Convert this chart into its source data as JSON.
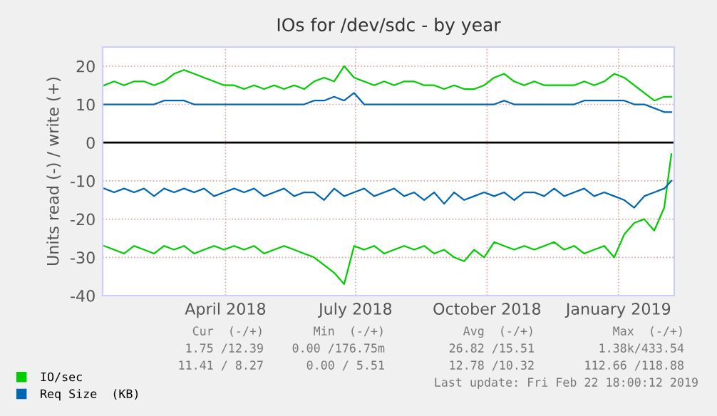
{
  "chart_data": {
    "type": "line",
    "title": "IOs for /dev/sdc - by year",
    "ylabel": "Units read (-) / write (+)",
    "x": [
      "2018-01-20",
      "2018-01-27",
      "2018-02-03",
      "2018-02-10",
      "2018-02-17",
      "2018-02-24",
      "2018-03-03",
      "2018-03-10",
      "2018-03-17",
      "2018-03-24",
      "2018-03-31",
      "2018-04-07",
      "2018-04-14",
      "2018-04-21",
      "2018-04-28",
      "2018-05-05",
      "2018-05-12",
      "2018-05-19",
      "2018-05-26",
      "2018-06-02",
      "2018-06-09",
      "2018-06-16",
      "2018-06-23",
      "2018-06-30",
      "2018-07-07",
      "2018-07-14",
      "2018-07-21",
      "2018-07-28",
      "2018-08-04",
      "2018-08-11",
      "2018-08-18",
      "2018-08-25",
      "2018-09-01",
      "2018-09-08",
      "2018-09-15",
      "2018-09-22",
      "2018-09-29",
      "2018-10-06",
      "2018-10-13",
      "2018-10-20",
      "2018-10-27",
      "2018-11-03",
      "2018-11-10",
      "2018-11-17",
      "2018-11-24",
      "2018-12-01",
      "2018-12-08",
      "2018-12-15",
      "2018-12-22",
      "2018-12-29",
      "2019-01-05",
      "2019-01-12",
      "2019-01-19",
      "2019-01-26",
      "2019-02-02",
      "2019-02-09",
      "2019-02-16",
      "2019-02-21"
    ],
    "series": [
      {
        "name": "IO/sec",
        "color": "#00cc00",
        "values": [
          15,
          16,
          15,
          16,
          16,
          15,
          16,
          18,
          19,
          18,
          17,
          16,
          15,
          15,
          14,
          15,
          14,
          15,
          14,
          15,
          14,
          16,
          17,
          16,
          20,
          17,
          16,
          15,
          16,
          15,
          16,
          16,
          15,
          15,
          14,
          15,
          14,
          14,
          15,
          17,
          18,
          16,
          15,
          16,
          15,
          15,
          15,
          15,
          16,
          15,
          16,
          18,
          17,
          15,
          13,
          11,
          12,
          12
        ]
      },
      {
        "color": "#00cc00",
        "values": [
          -27,
          -28,
          -29,
          -27,
          -28,
          -29,
          -27,
          -28,
          -27,
          -29,
          -28,
          -27,
          -28,
          -27,
          -28,
          -27,
          -29,
          -28,
          -27,
          -28,
          -29,
          -30,
          -32,
          -34,
          -37,
          -27,
          -28,
          -27,
          -29,
          -28,
          -27,
          -28,
          -27,
          -29,
          -28,
          -30,
          -31,
          -28,
          -30,
          -26,
          -27,
          -28,
          -27,
          -28,
          -27,
          -26,
          -28,
          -27,
          -29,
          -28,
          -27,
          -30,
          -24,
          -21,
          -20,
          -23,
          -17,
          -3
        ]
      },
      {
        "name": "Req Size  (KB)",
        "color": "#0066b3",
        "values": [
          10,
          10,
          10,
          10,
          10,
          10,
          11,
          11,
          11,
          10,
          10,
          10,
          10,
          10,
          10,
          10,
          10,
          10,
          10,
          10,
          10,
          11,
          11,
          12,
          11,
          13,
          10,
          10,
          10,
          10,
          10,
          10,
          10,
          10,
          10,
          10,
          10,
          10,
          10,
          10,
          11,
          10,
          10,
          10,
          10,
          10,
          10,
          10,
          11,
          11,
          11,
          11,
          11,
          10,
          10,
          9,
          8,
          8
        ]
      },
      {
        "color": "#0066b3",
        "values": [
          -12,
          -13,
          -12,
          -13,
          -12,
          -14,
          -12,
          -13,
          -12,
          -13,
          -12,
          -14,
          -13,
          -12,
          -13,
          -12,
          -14,
          -13,
          -12,
          -14,
          -13,
          -13,
          -15,
          -12,
          -14,
          -13,
          -12,
          -14,
          -13,
          -12,
          -14,
          -13,
          -15,
          -13,
          -16,
          -13,
          -15,
          -14,
          -13,
          -14,
          -13,
          -15,
          -13,
          -13,
          -14,
          -12,
          -14,
          -13,
          -12,
          -14,
          -13,
          -14,
          -15,
          -17,
          -14,
          -13,
          -12,
          -10
        ]
      }
    ],
    "xlim": [
      "2018-01-19",
      "2019-02-23"
    ],
    "xticks": [
      {
        "value": "2018-04-15",
        "label": "April 2018"
      },
      {
        "value": "2018-07-15",
        "label": "July 2018"
      },
      {
        "value": "2018-10-15",
        "label": "October 2018"
      },
      {
        "value": "2019-01-15",
        "label": "January 2019"
      }
    ],
    "ylim": [
      -40,
      25
    ],
    "yticks": [
      -40,
      -30,
      -20,
      -10,
      0,
      10,
      20
    ],
    "ref_lines": [
      {
        "axis": "y",
        "value": 0,
        "color": "#000000"
      }
    ],
    "grid": true,
    "legend": "bottom left",
    "marker": "none",
    "line_style": "solid",
    "annotations": [
      "Cur  (-/+)",
      "Min  (-/+)",
      "Avg  (-/+)",
      "Max  (-/+)",
      "1.75 /12.39",
      "0.00 /176.75m",
      "26.82 /15.51",
      "1.38k/433.54",
      "11.41 / 8.27",
      "0.00 / 5.51",
      "12.78 /10.32",
      "112.66 /118.88",
      "Last update: Fri Feb 22 18:00:12 2019"
    ]
  }
}
